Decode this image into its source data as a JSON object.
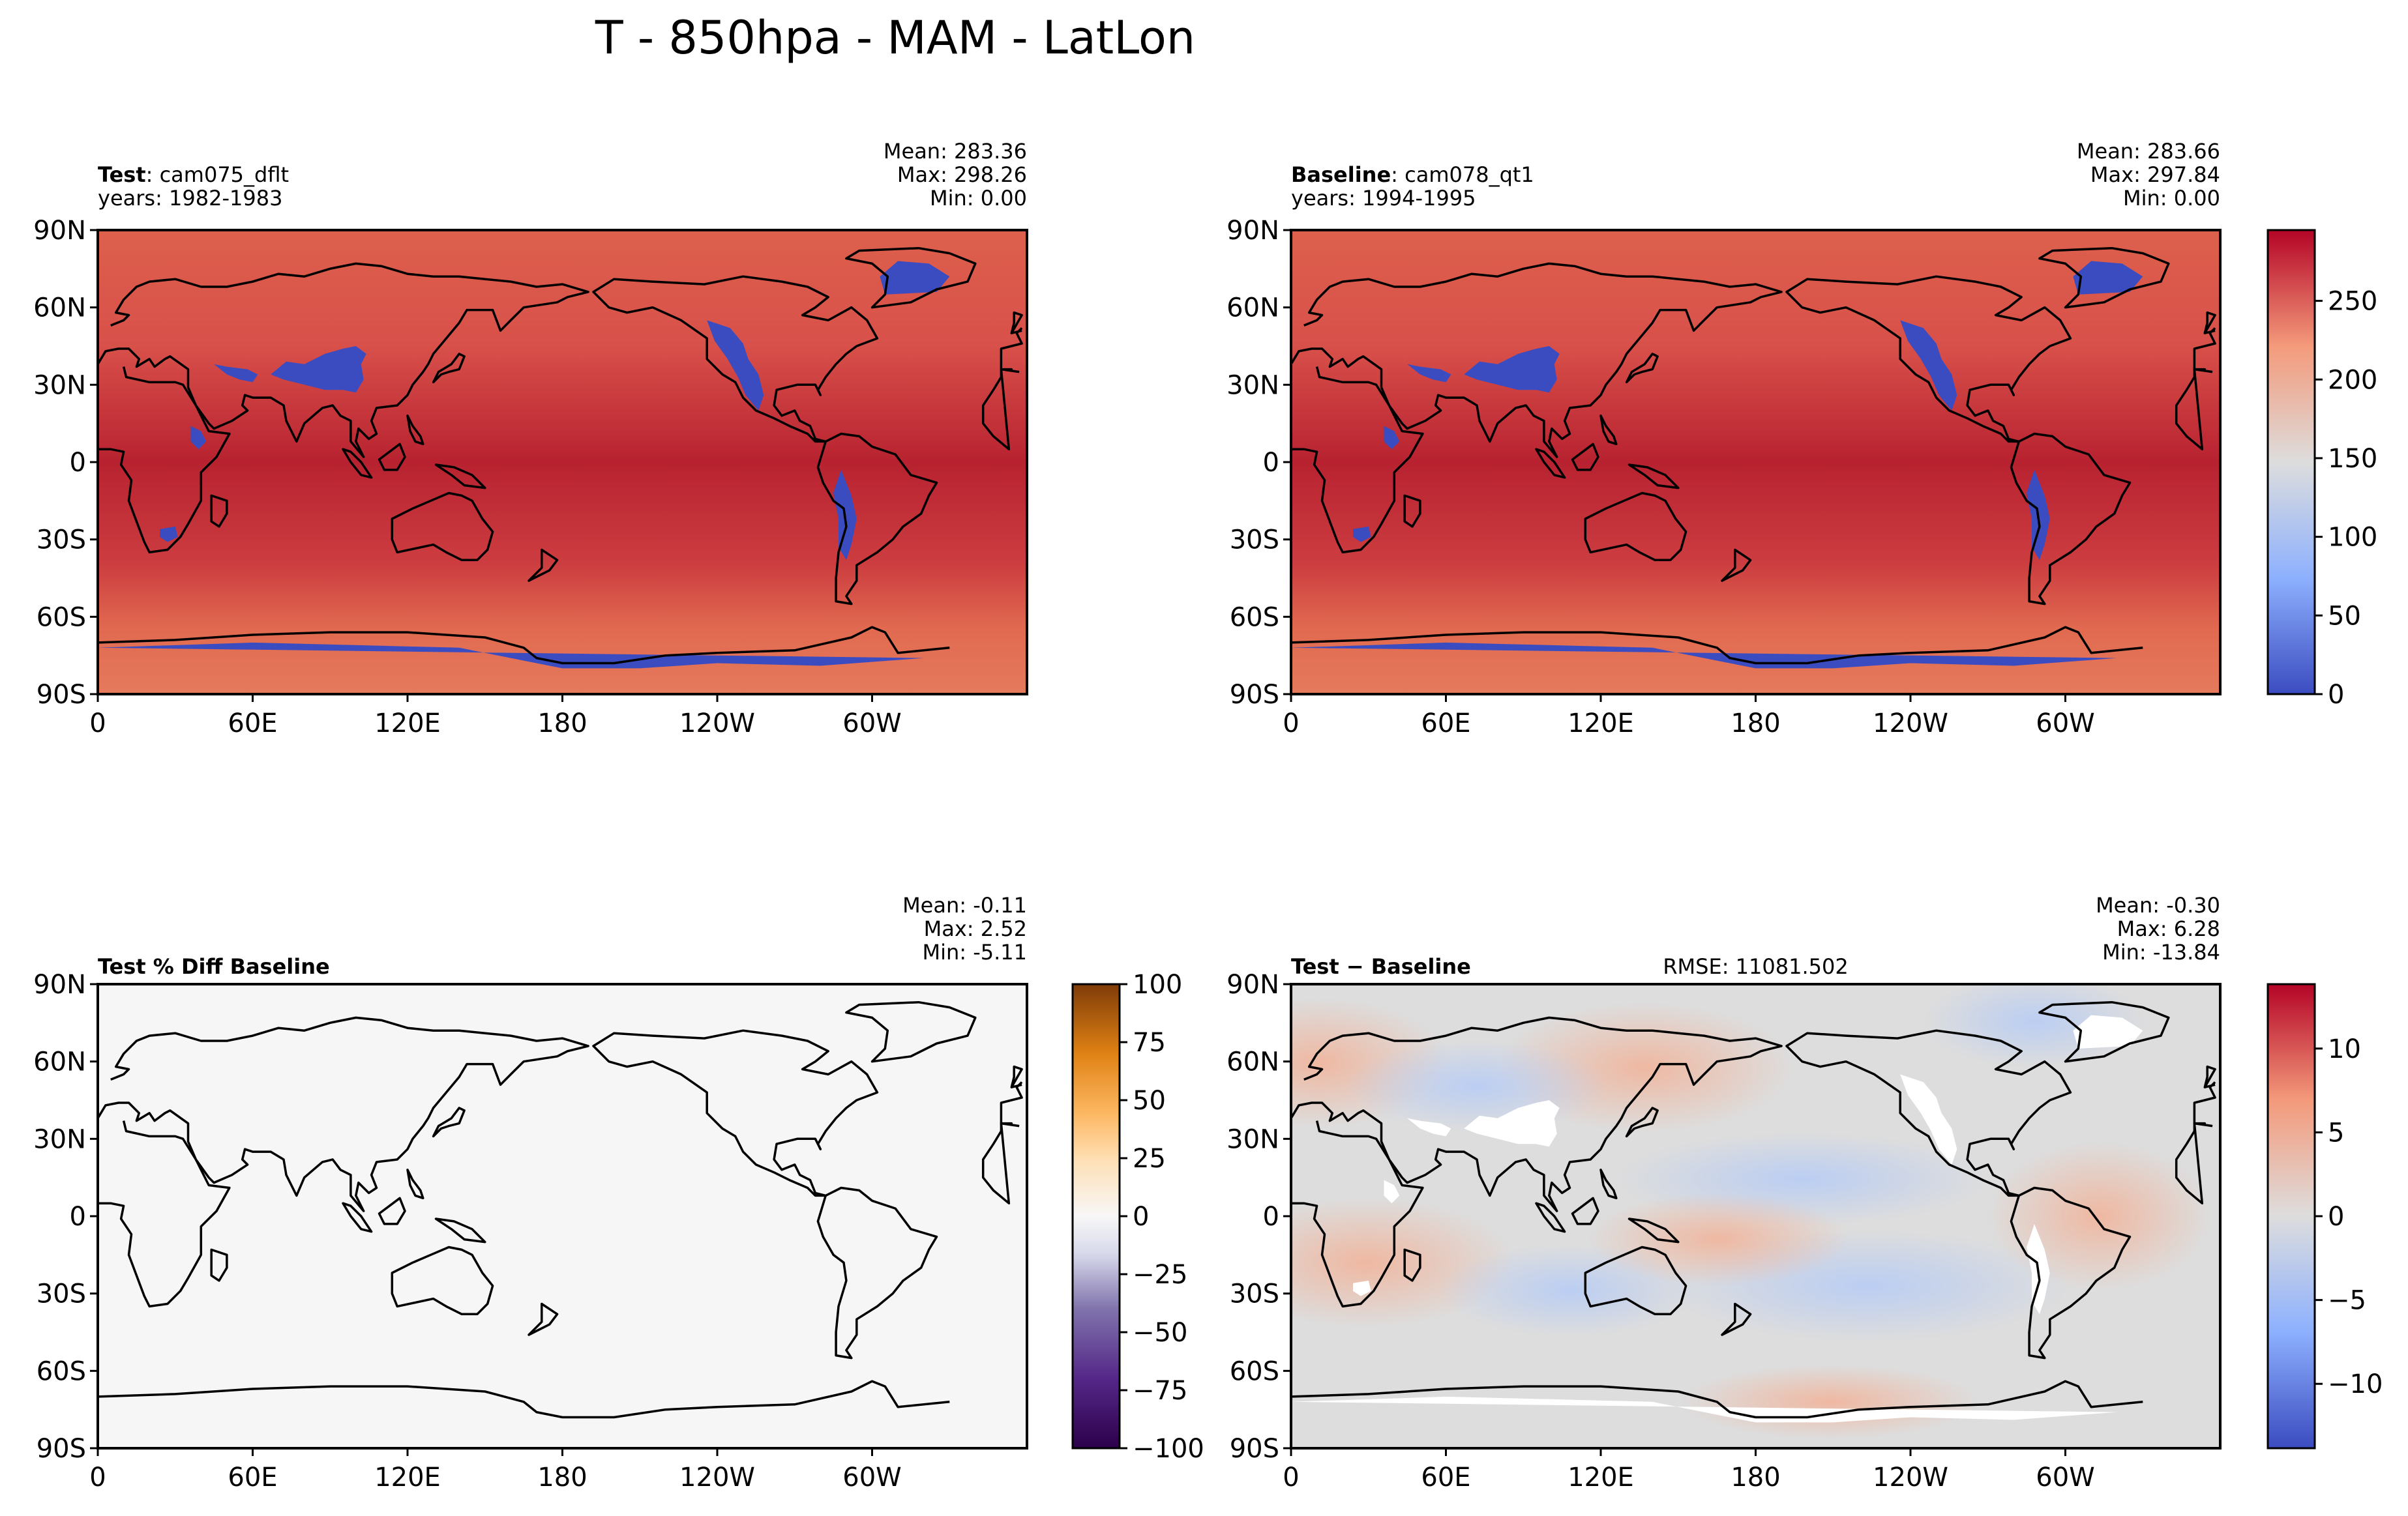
{
  "figure": {
    "title": "T - 850hpa - MAM - LatLon"
  },
  "panels": [
    {
      "id": "test",
      "field": "abs",
      "label_bold": "Test",
      "label_rest": ": cam075_dflt",
      "years": "years: 1982-1983",
      "stats": {
        "mean": "Mean: 283.36",
        "max": "Max: 298.26",
        "min": "Min:  0.00"
      },
      "rmse": ""
    },
    {
      "id": "baseline",
      "field": "abs",
      "label_bold": "Baseline",
      "label_rest": ": cam078_qt1",
      "years": "years: 1994-1995",
      "stats": {
        "mean": "Mean: 283.66",
        "max": "Max: 297.84",
        "min": "Min:  0.00"
      },
      "rmse": ""
    },
    {
      "id": "pctdiff",
      "field": "pct",
      "label_bold": "Test % Diff Baseline",
      "label_rest": "",
      "years": "",
      "stats": {
        "mean": "Mean: -0.11",
        "max": "Max:  2.52",
        "min": "Min: -5.11"
      },
      "rmse": ""
    },
    {
      "id": "diff",
      "field": "diff",
      "label_bold": "Test − Baseline",
      "label_rest": "",
      "years": "",
      "stats": {
        "mean": "Mean: -0.30",
        "max": "Max:  6.28",
        "min": "Min: -13.84"
      },
      "rmse": "RMSE: 11081.502"
    }
  ],
  "lat_ticks": [
    "90N",
    "60N",
    "30N",
    "0",
    "30S",
    "60S",
    "90S"
  ],
  "lon_ticks": [
    "0",
    "60E",
    "120E",
    "180",
    "120W",
    "60W"
  ],
  "colorbars": [
    {
      "id": "abs",
      "colormap": "coolwarm",
      "range": [
        0,
        295
      ],
      "ticks": [
        0,
        50,
        100,
        150,
        200,
        250
      ]
    },
    {
      "id": "pct",
      "colormap": "PuOr_r",
      "range": [
        -100,
        100
      ],
      "ticks": [
        -100,
        -75,
        -50,
        -25,
        0,
        25,
        50,
        75,
        100
      ]
    },
    {
      "id": "diff",
      "colormap": "coolwarm",
      "range": [
        -13.84,
        13.84
      ],
      "ticks": [
        -10,
        -5,
        0,
        5,
        10
      ]
    }
  ],
  "colors": {
    "abs_high": "#b2182b",
    "abs_mid": "#dd5d4a",
    "abs_low": "#3b4cc0",
    "pct_fill": "#f6f6f6",
    "diff_mid": "#dddddd",
    "coastline": "#000000"
  }
}
